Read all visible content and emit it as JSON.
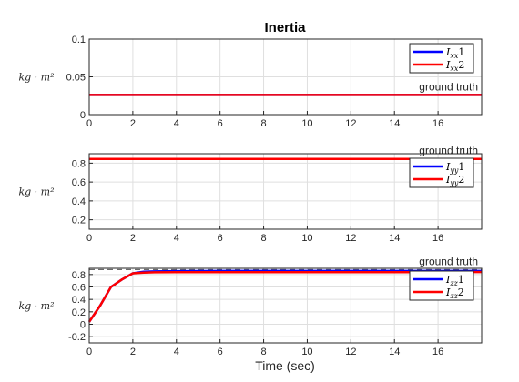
{
  "figure": {
    "title": "Inertia",
    "xlabel": "Time (sec)"
  },
  "chart_data": [
    {
      "type": "line",
      "name": "Ixx",
      "ylabel": "kg · m²",
      "xlim": [
        0,
        18
      ],
      "ylim": [
        0,
        0.1
      ],
      "xticks": [
        0,
        2,
        4,
        6,
        8,
        10,
        12,
        14,
        16
      ],
      "yticks": [
        0,
        0.05,
        0.1
      ],
      "ytick_labels": [
        "0",
        "0.05",
        "0.1"
      ],
      "grid": true,
      "legend_position": "top-right",
      "ground_truth": {
        "label": "ground truth",
        "value": 0.026
      },
      "series": [
        {
          "name": "I_xx1",
          "sub": "xx",
          "idx": "1",
          "color": "#0000ff",
          "x": [
            0,
            18
          ],
          "y": [
            0.026,
            0.026
          ]
        },
        {
          "name": "I_xx2",
          "sub": "xx",
          "idx": "2",
          "color": "#ff0000",
          "x": [
            0,
            18
          ],
          "y": [
            0.026,
            0.026
          ]
        }
      ]
    },
    {
      "type": "line",
      "name": "Iyy",
      "ylabel": "kg · m²",
      "xlim": [
        0,
        18
      ],
      "ylim": [
        0.1,
        0.9
      ],
      "xticks": [
        0,
        2,
        4,
        6,
        8,
        10,
        12,
        14,
        16
      ],
      "yticks": [
        0.2,
        0.4,
        0.6,
        0.8
      ],
      "ytick_labels": [
        "0.2",
        "0.4",
        "0.6",
        "0.8"
      ],
      "grid": true,
      "legend_position": "top-right",
      "ground_truth": {
        "label": "ground truth",
        "value": 0.845
      },
      "series": [
        {
          "name": "I_yy1",
          "sub": "yy",
          "idx": "1",
          "color": "#0000ff",
          "x": [
            0,
            18
          ],
          "y": [
            0.845,
            0.845
          ]
        },
        {
          "name": "I_yy2",
          "sub": "yy",
          "idx": "2",
          "color": "#ff0000",
          "x": [
            0,
            18
          ],
          "y": [
            0.845,
            0.845
          ]
        }
      ]
    },
    {
      "type": "line",
      "name": "Izz",
      "ylabel": "kg · m²",
      "xlim": [
        0,
        18
      ],
      "ylim": [
        -0.3,
        0.9
      ],
      "xticks": [
        0,
        2,
        4,
        6,
        8,
        10,
        12,
        14,
        16
      ],
      "yticks": [
        -0.2,
        0,
        0.2,
        0.4,
        0.6,
        0.8
      ],
      "ytick_labels": [
        "-0.2",
        "0",
        "0.2",
        "0.4",
        "0.6",
        "0.8"
      ],
      "grid": true,
      "legend_position": "top-right",
      "ground_truth": {
        "label": "ground truth",
        "value": 0.88
      },
      "series": [
        {
          "name": "I_zz1",
          "sub": "zz",
          "idx": "1",
          "color": "#0000ff",
          "x": [
            0,
            0.5,
            1,
            1.5,
            2,
            2.5,
            3,
            4,
            6,
            8,
            10,
            12,
            14,
            16,
            18
          ],
          "y": [
            0.04,
            0.3,
            0.6,
            0.72,
            0.82,
            0.845,
            0.85,
            0.855,
            0.857,
            0.858,
            0.858,
            0.858,
            0.858,
            0.858,
            0.858
          ]
        },
        {
          "name": "I_zz2",
          "sub": "zz",
          "idx": "2",
          "color": "#ff0000",
          "x": [
            0,
            0.5,
            1,
            1.5,
            2,
            2.5,
            3,
            4,
            6,
            8,
            10,
            12,
            14,
            16,
            18
          ],
          "y": [
            0.04,
            0.3,
            0.6,
            0.72,
            0.82,
            0.83,
            0.835,
            0.838,
            0.838,
            0.838,
            0.838,
            0.838,
            0.838,
            0.838,
            0.84
          ]
        }
      ]
    }
  ]
}
